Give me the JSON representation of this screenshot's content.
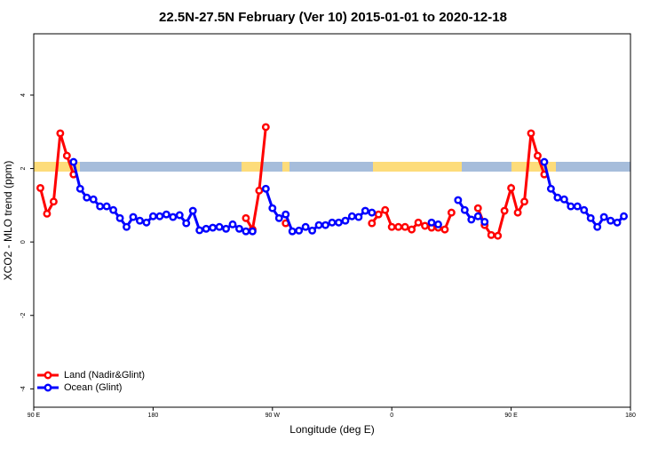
{
  "chart_data": {
    "type": "line",
    "title": "22.5N-27.5N February (Ver 10)   2015-01-01 to 2020-12-18",
    "x_label": "Longitude (deg E)",
    "y_label": "XCO2 - MLO trend (ppm)",
    "xlim": [
      90,
      540
    ],
    "ylim": [
      -4.5,
      5.67
    ],
    "xticks": [
      {
        "value": 90,
        "label": "90 E"
      },
      {
        "value": 180,
        "label": "180"
      },
      {
        "value": 270,
        "label": "90 W"
      },
      {
        "value": 360,
        "label": "0"
      },
      {
        "value": 450,
        "label": "90 E"
      },
      {
        "value": 540,
        "label": "180"
      }
    ],
    "yticks": [
      -4,
      -2,
      0,
      2,
      4
    ],
    "legend": "bottom-left",
    "x": [
      95,
      100,
      105,
      110,
      115,
      120,
      125,
      130,
      135,
      140,
      145,
      150,
      155,
      160,
      165,
      170,
      175,
      180,
      185,
      190,
      195,
      200,
      205,
      210,
      215,
      220,
      225,
      230,
      235,
      240,
      245,
      250,
      255,
      260,
      265,
      270,
      275,
      280,
      285,
      290,
      295,
      300,
      305,
      310,
      315,
      320,
      325,
      330,
      335,
      340,
      345,
      350,
      355,
      360,
      365,
      370,
      375,
      380,
      385,
      390,
      395,
      400,
      405,
      410,
      415,
      420,
      425,
      430,
      435,
      440,
      445,
      450,
      455,
      460,
      465,
      470,
      475,
      480,
      485,
      490,
      495,
      500,
      505,
      510,
      515,
      520,
      525,
      530,
      535
    ],
    "series": [
      {
        "name": "Land (Nadir&Glint)",
        "color": "#ff0000",
        "values": [
          1.47,
          0.77,
          1.1,
          2.96,
          2.35,
          1.84,
          null,
          null,
          null,
          null,
          null,
          null,
          null,
          null,
          null,
          null,
          null,
          null,
          null,
          null,
          null,
          null,
          null,
          null,
          null,
          null,
          null,
          null,
          null,
          null,
          null,
          0.65,
          0.34,
          1.4,
          3.13,
          null,
          null,
          0.51,
          null,
          null,
          null,
          null,
          null,
          null,
          null,
          null,
          null,
          null,
          null,
          null,
          0.51,
          0.75,
          0.87,
          0.41,
          0.41,
          0.41,
          0.34,
          0.53,
          0.44,
          0.39,
          0.39,
          0.34,
          0.8,
          null,
          null,
          null,
          0.92,
          0.46,
          0.19,
          0.17,
          0.85,
          1.47,
          0.8,
          1.1,
          2.96,
          2.35,
          1.84,
          null,
          null,
          null,
          null,
          null,
          null,
          null,
          null,
          null,
          null,
          null,
          null
        ]
      },
      {
        "name": "Ocean (Glint)",
        "color": "#0000ff",
        "values": [
          null,
          null,
          null,
          null,
          null,
          2.18,
          1.45,
          1.21,
          1.16,
          0.97,
          0.97,
          0.87,
          0.65,
          0.41,
          0.68,
          0.58,
          0.53,
          0.7,
          0.7,
          0.75,
          0.68,
          0.73,
          0.51,
          0.85,
          0.32,
          0.36,
          0.39,
          0.41,
          0.36,
          0.48,
          0.36,
          0.29,
          0.29,
          null,
          1.45,
          0.92,
          0.65,
          0.75,
          0.29,
          0.31,
          0.41,
          0.31,
          0.46,
          0.46,
          0.53,
          0.53,
          0.58,
          0.7,
          0.68,
          0.85,
          0.8,
          null,
          null,
          null,
          null,
          null,
          null,
          null,
          null,
          0.53,
          0.48,
          null,
          null,
          1.14,
          0.87,
          0.61,
          0.7,
          0.55,
          null,
          null,
          null,
          null,
          null,
          null,
          null,
          null,
          2.18,
          1.45,
          1.21,
          1.16,
          0.97,
          0.97,
          0.87,
          0.65,
          0.41,
          0.68,
          0.58,
          0.53,
          0.7
        ]
      }
    ]
  }
}
